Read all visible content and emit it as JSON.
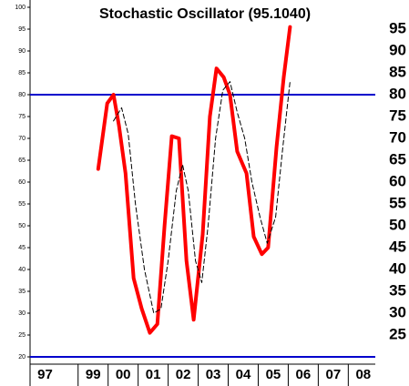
{
  "chart_data": {
    "type": "line",
    "title": "Stochastic Oscillator (95.1040)",
    "xlim": [
      1997.4,
      2008.9
    ],
    "xticks": [
      {
        "value": 1997.4,
        "label": "97"
      },
      {
        "value": 1999,
        "label": "99"
      },
      {
        "value": 2000,
        "label": "00"
      },
      {
        "value": 2001,
        "label": "01"
      },
      {
        "value": 2002,
        "label": "02"
      },
      {
        "value": 2003,
        "label": "03"
      },
      {
        "value": 2004,
        "label": "04"
      },
      {
        "value": 2005,
        "label": "05"
      },
      {
        "value": 2006,
        "label": "06"
      },
      {
        "value": 2007,
        "label": "07"
      },
      {
        "value": 2008,
        "label": "08"
      }
    ],
    "ylim": [
      20,
      100
    ],
    "yticks": [
      20,
      25,
      30,
      35,
      40,
      45,
      50,
      55,
      60,
      65,
      70,
      75,
      80,
      85,
      90,
      95,
      100
    ],
    "y2lim": [
      20,
      100
    ],
    "y2ticks": [
      25,
      30,
      35,
      40,
      45,
      50,
      55,
      60,
      65,
      70,
      75,
      80,
      85,
      90,
      95
    ],
    "hlines": [
      80,
      20
    ],
    "hline_color": "#0000cc",
    "series": [
      {
        "color": "#ff0000",
        "width": 4,
        "dashed": false,
        "x": [
          1999.67,
          1999.97,
          2000.18,
          2000.36,
          2000.58,
          2000.85,
          2001.12,
          2001.39,
          2001.64,
          2001.88,
          2002.12,
          2002.36,
          2002.61,
          2002.85,
          2003.15,
          2003.39,
          2003.61,
          2003.85,
          2004.06,
          2004.3,
          2004.61,
          2004.85,
          2005.12,
          2005.33,
          2005.61,
          2005.85,
          2006.06
        ],
        "values": [
          63,
          78,
          80,
          73,
          62,
          38,
          31,
          25.5,
          27.5,
          50,
          70.5,
          70,
          42,
          28.5,
          48,
          75,
          86,
          84,
          80,
          67,
          62,
          47.5,
          43.5,
          45,
          68,
          84,
          95.5
        ]
      },
      {
        "color": "#000000",
        "width": 1,
        "dashed": true,
        "x": [
          2000.18,
          2000.45,
          2000.67,
          2000.91,
          2001.21,
          2001.52,
          2001.76,
          2002.0,
          2002.27,
          2002.48,
          2002.67,
          2002.91,
          2003.12,
          2003.33,
          2003.58,
          2003.82,
          2004.06,
          2004.3,
          2004.55,
          2004.79,
          2005.06,
          2005.3,
          2005.58,
          2005.82,
          2006.06
        ],
        "values": [
          74,
          77,
          71,
          55,
          40,
          30,
          31,
          42,
          58,
          64,
          58,
          42,
          37,
          50,
          70,
          81,
          83,
          76,
          70,
          60,
          52,
          46,
          52,
          68,
          83
        ]
      }
    ]
  }
}
